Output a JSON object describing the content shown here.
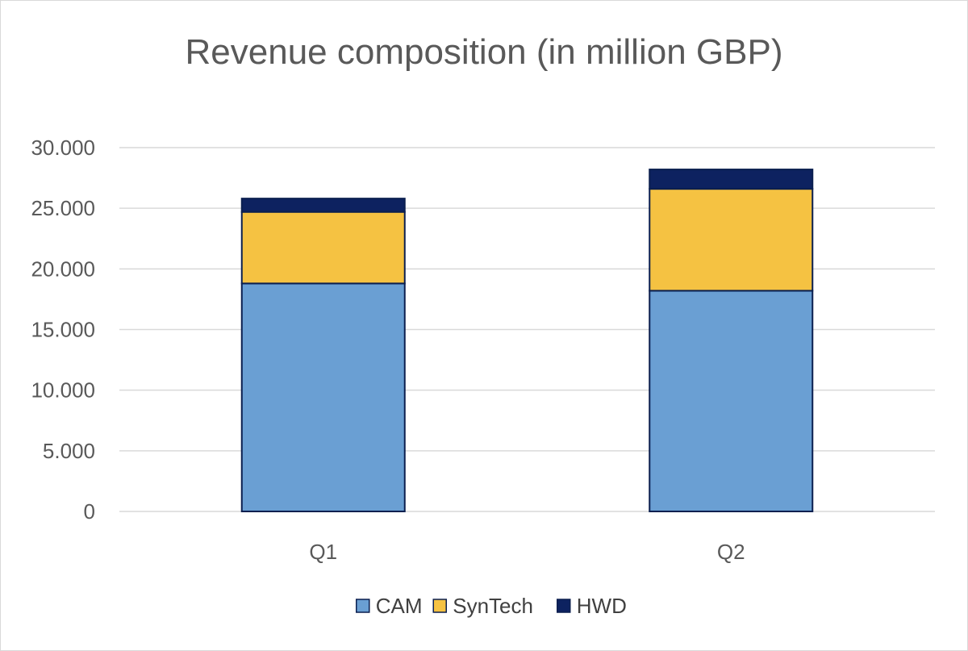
{
  "chart_data": {
    "type": "bar",
    "stacked": true,
    "title": "Revenue composition (in million GBP)",
    "xlabel": "",
    "ylabel": "",
    "categories": [
      "Q1",
      "Q2"
    ],
    "series": [
      {
        "name": "CAM",
        "values": [
          18800,
          18200
        ],
        "color": "#6a9fd3"
      },
      {
        "name": "SynTech",
        "values": [
          5900,
          8400
        ],
        "color": "#f5c242"
      },
      {
        "name": "HWD",
        "values": [
          1100,
          1600
        ],
        "color": "#0d2260"
      }
    ],
    "ylim": [
      0,
      30000
    ],
    "yticks": [
      0,
      5000,
      10000,
      15000,
      20000,
      25000,
      30000
    ],
    "ytick_labels": [
      "0",
      "5.000",
      "10.000",
      "15.000",
      "20.000",
      "25.000",
      "30.000"
    ],
    "grid": true,
    "legend_position": "bottom"
  }
}
